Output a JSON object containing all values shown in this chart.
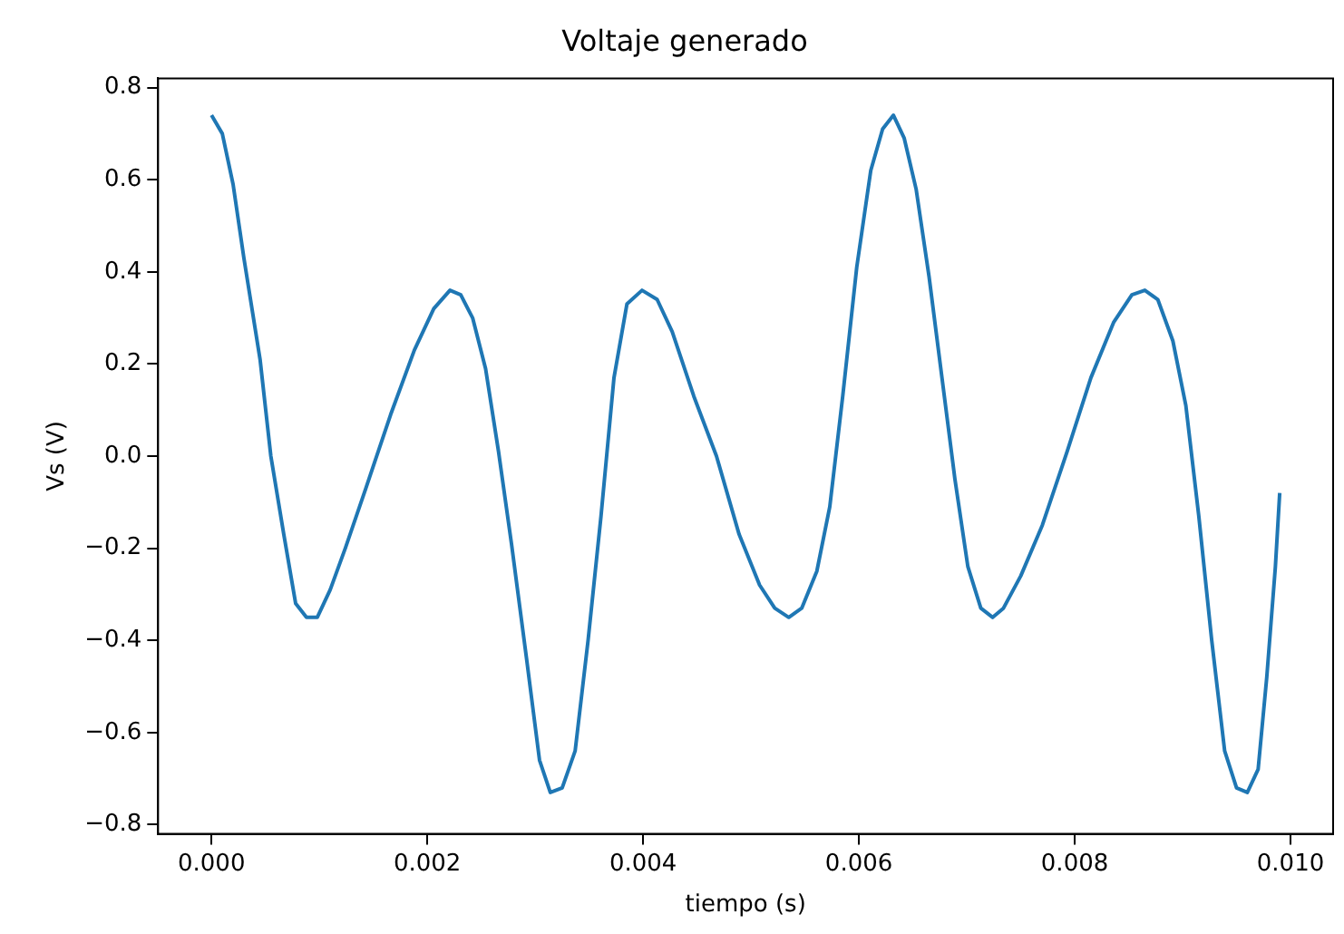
{
  "chart_data": {
    "type": "line",
    "title": "Voltaje generado",
    "xlabel": "tiempo (s)",
    "ylabel": "Vs (V)",
    "xlim": [
      -0.000495,
      0.010395
    ],
    "ylim": [
      -0.82,
      0.82
    ],
    "xticks": [
      {
        "value": 0,
        "label": "0.000"
      },
      {
        "value": 0.002,
        "label": "0.002"
      },
      {
        "value": 0.004,
        "label": "0.004"
      },
      {
        "value": 0.006,
        "label": "0.006"
      },
      {
        "value": 0.008,
        "label": "0.008"
      },
      {
        "value": 0.01,
        "label": "0.010"
      }
    ],
    "yticks": [
      {
        "value": -0.8,
        "label": "−0.8"
      },
      {
        "value": -0.6,
        "label": "−0.6"
      },
      {
        "value": -0.4,
        "label": "−0.4"
      },
      {
        "value": -0.2,
        "label": "−0.2"
      },
      {
        "value": 0,
        "label": "0.0"
      },
      {
        "value": 0.2,
        "label": "0.2"
      },
      {
        "value": 0.4,
        "label": "0.4"
      },
      {
        "value": 0.6,
        "label": "0.6"
      },
      {
        "value": 0.8,
        "label": "0.8"
      }
    ],
    "grid": false,
    "legend": false,
    "marker": "none",
    "line_style": "solid",
    "x": [
      0,
      0.0001,
      0.0002,
      0.0003,
      0.00045,
      0.00055,
      0.00067,
      0.00078,
      0.00088,
      0.00098,
      0.0011,
      0.00124,
      0.00143,
      0.00166,
      0.00188,
      0.00206,
      0.00221,
      0.00231,
      0.00242,
      0.00254,
      0.00266,
      0.00278,
      0.00292,
      0.00304,
      0.00314,
      0.00325,
      0.00337,
      0.00349,
      0.00361,
      0.00373,
      0.00385,
      0.00399,
      0.00413,
      0.00427,
      0.00447,
      0.00468,
      0.00489,
      0.00508,
      0.00522,
      0.00535,
      0.00547,
      0.00561,
      0.00573,
      0.00585,
      0.00598,
      0.00611,
      0.00622,
      0.00632,
      0.00642,
      0.00653,
      0.00665,
      0.00677,
      0.00689,
      0.00701,
      0.00713,
      0.00724,
      0.00734,
      0.0075,
      0.0077,
      0.00793,
      0.00815,
      0.00836,
      0.00853,
      0.00865,
      0.00877,
      0.00891,
      0.00903,
      0.00915,
      0.00927,
      0.00939,
      0.0095,
      0.0096,
      0.0097,
      0.00978,
      0.00986,
      0.0099
    ],
    "series": [
      {
        "color": "#1f77b4",
        "values": [
          0.74,
          0.7,
          0.59,
          0.43,
          0.21,
          0.0,
          -0.17,
          -0.32,
          -0.35,
          -0.35,
          -0.29,
          -0.2,
          -0.07,
          0.09,
          0.23,
          0.32,
          0.36,
          0.35,
          0.3,
          0.19,
          0.01,
          -0.19,
          -0.44,
          -0.66,
          -0.73,
          -0.72,
          -0.64,
          -0.4,
          -0.13,
          0.17,
          0.33,
          0.36,
          0.34,
          0.27,
          0.13,
          0.0,
          -0.17,
          -0.28,
          -0.33,
          -0.35,
          -0.33,
          -0.25,
          -0.11,
          0.13,
          0.41,
          0.62,
          0.71,
          0.74,
          0.69,
          0.58,
          0.39,
          0.17,
          -0.05,
          -0.24,
          -0.33,
          -0.35,
          -0.33,
          -0.26,
          -0.15,
          0.01,
          0.17,
          0.29,
          0.35,
          0.36,
          0.34,
          0.25,
          0.11,
          -0.13,
          -0.4,
          -0.64,
          -0.72,
          -0.73,
          -0.68,
          -0.48,
          -0.24,
          -0.08
        ]
      }
    ]
  }
}
